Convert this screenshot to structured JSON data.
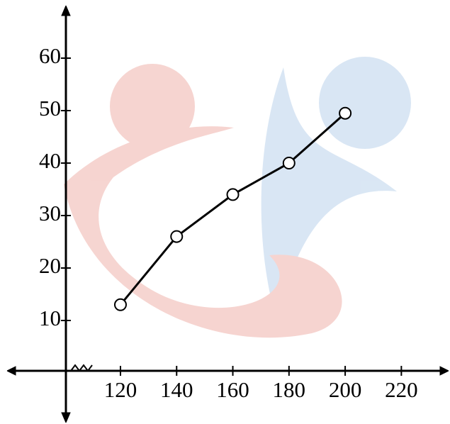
{
  "chart_data": {
    "type": "line",
    "x": [
      120,
      140,
      160,
      180,
      200
    ],
    "series": [
      {
        "color": "#000000",
        "values": [
          13,
          26,
          34,
          40,
          49.5
        ]
      }
    ],
    "xlim": [
      100,
      230
    ],
    "xticks": [
      120,
      140,
      160,
      180,
      200,
      220
    ],
    "ylim": [
      0,
      65
    ],
    "yticks": [
      10,
      20,
      30,
      40,
      50,
      60
    ]
  }
}
